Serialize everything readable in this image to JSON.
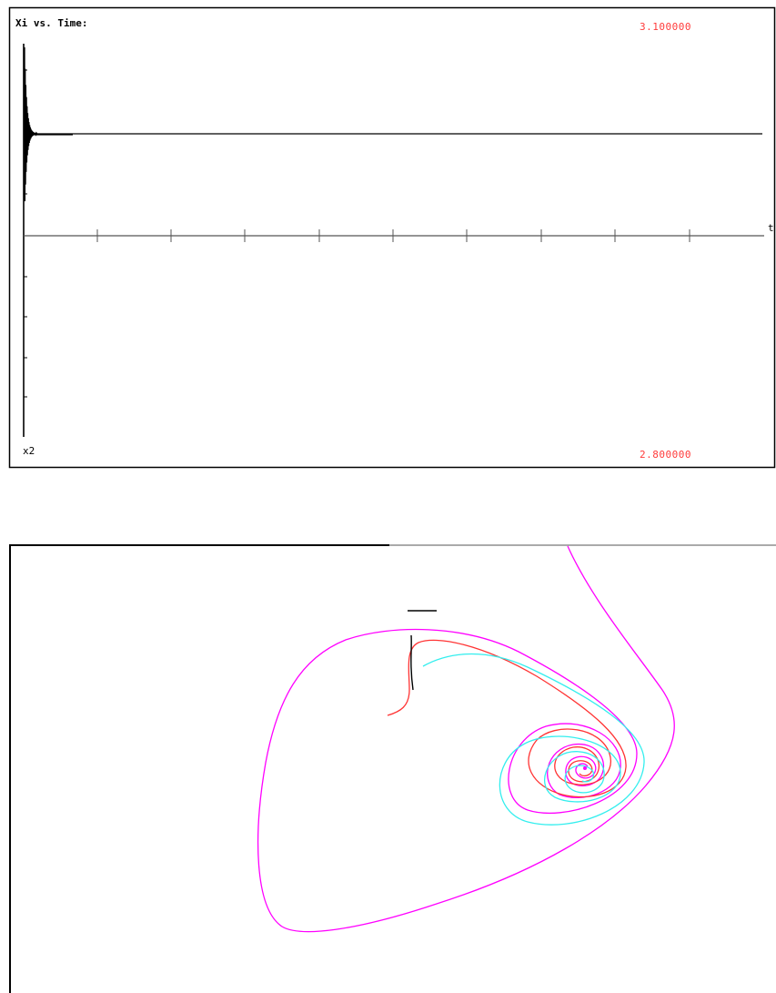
{
  "time_plot": {
    "title": "Xi vs. Time:",
    "y_max_label": "3.100000",
    "y_min_label": "2.800000",
    "variable_label": "x2",
    "time_axis_label": "t",
    "y_range": [
      2.8,
      3.1
    ],
    "steady_value_label": "",
    "colors": {
      "label_red": "#ff3b3b",
      "trace": "#000000",
      "axis": "#555555"
    }
  },
  "phase_plot": {
    "trajectory_colors": [
      "#ff00ff",
      "#ff3333",
      "#33eeee",
      "#000000"
    ]
  }
}
